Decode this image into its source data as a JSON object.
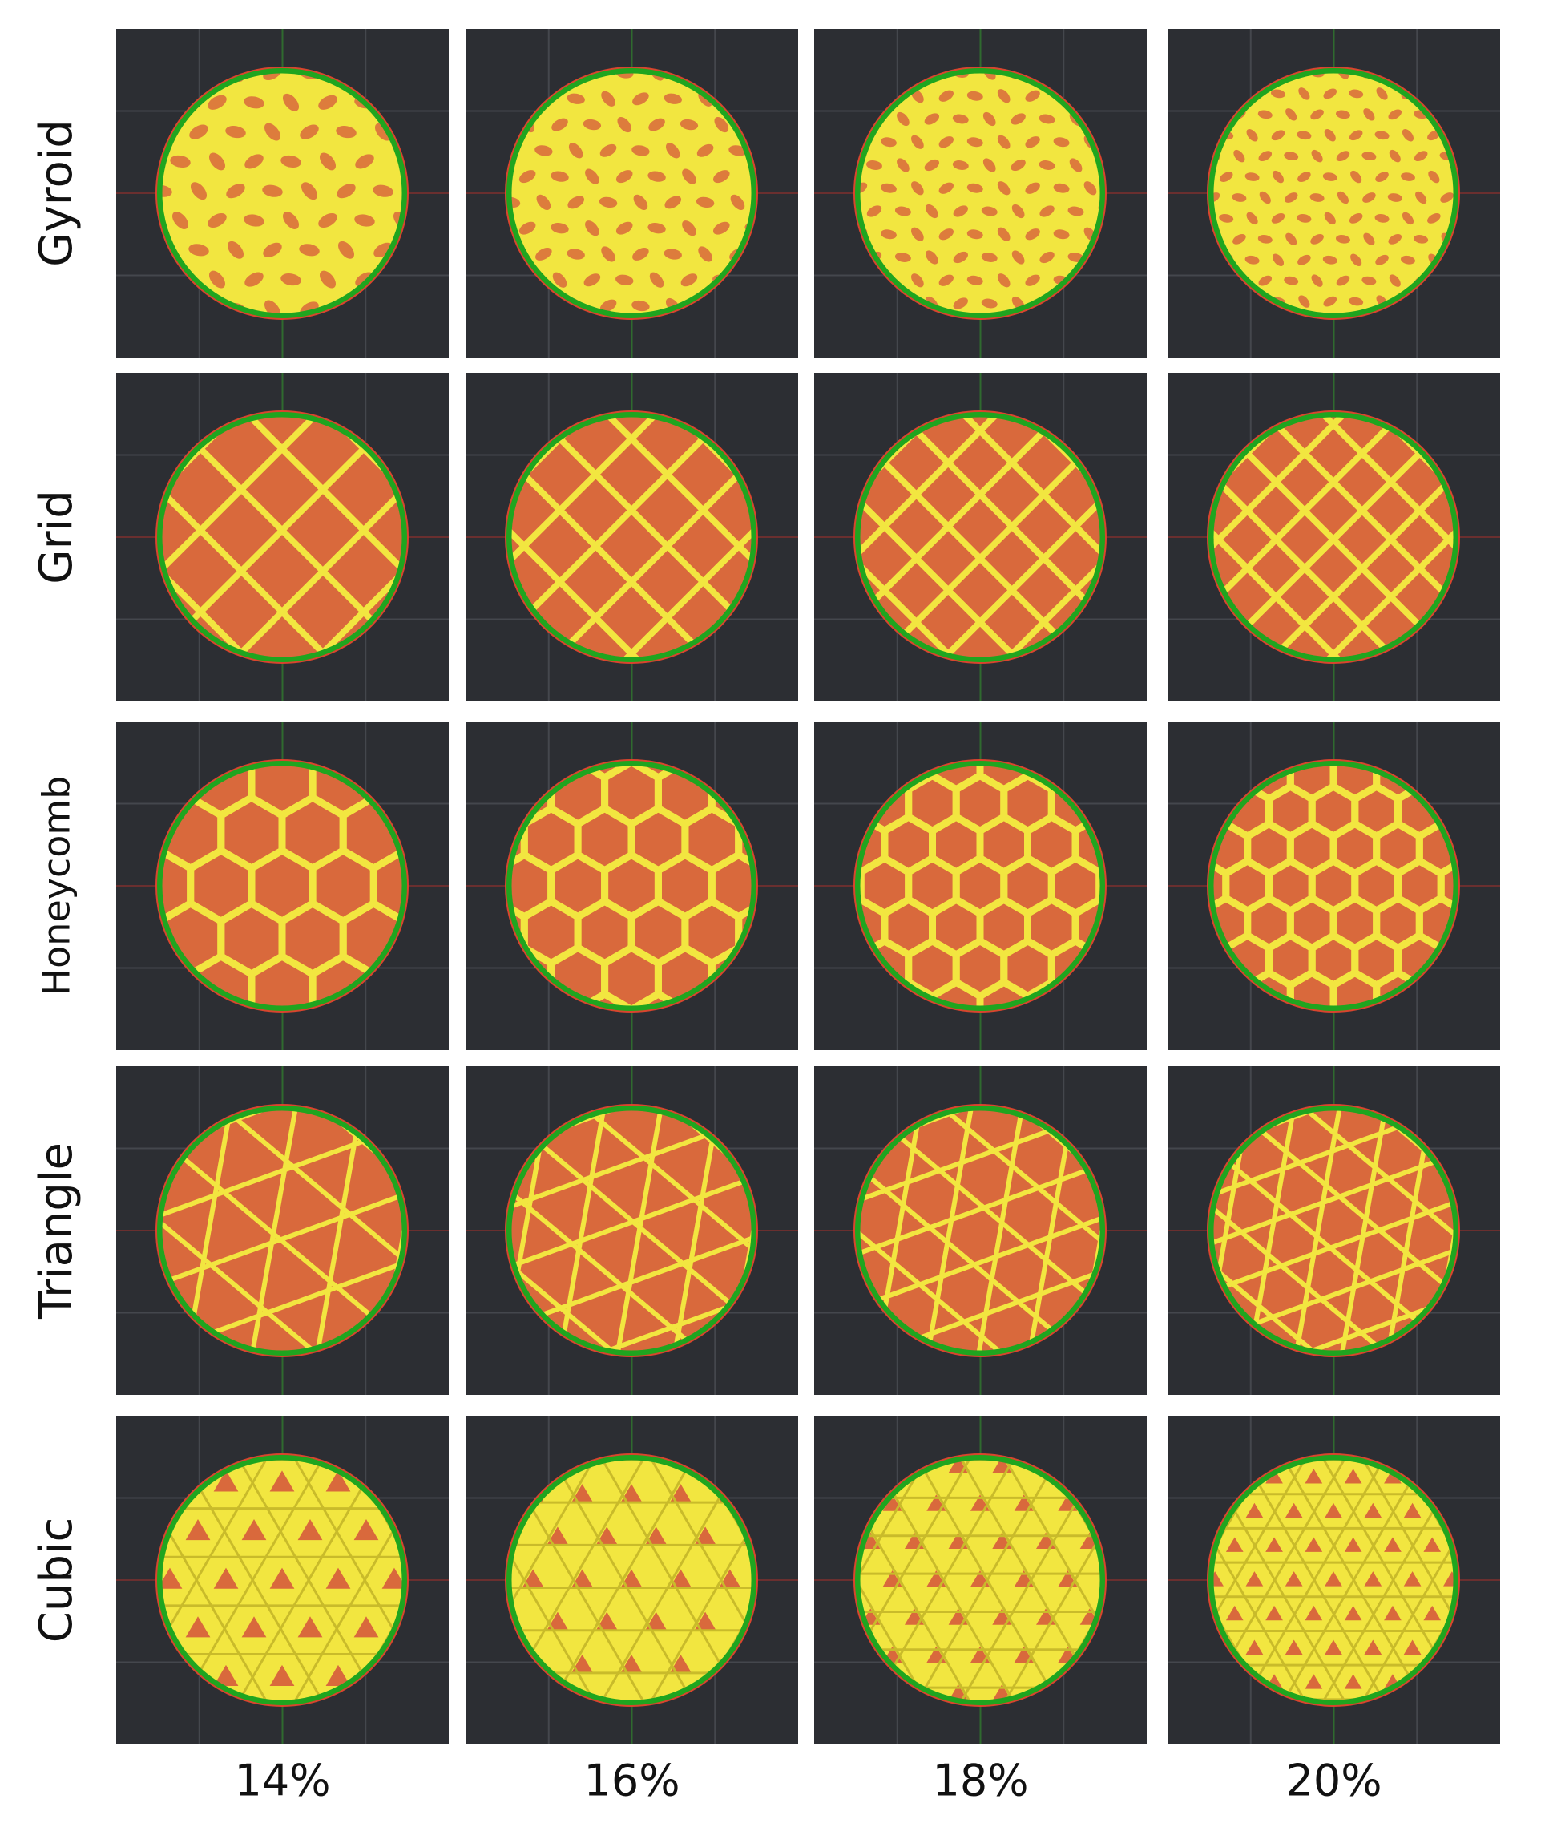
{
  "rows": [
    "Gyroid",
    "Grid",
    "Honeycomb",
    "Triangle",
    "Cubic"
  ],
  "columns": [
    "14%",
    "16%",
    "18%",
    "20%"
  ]
}
